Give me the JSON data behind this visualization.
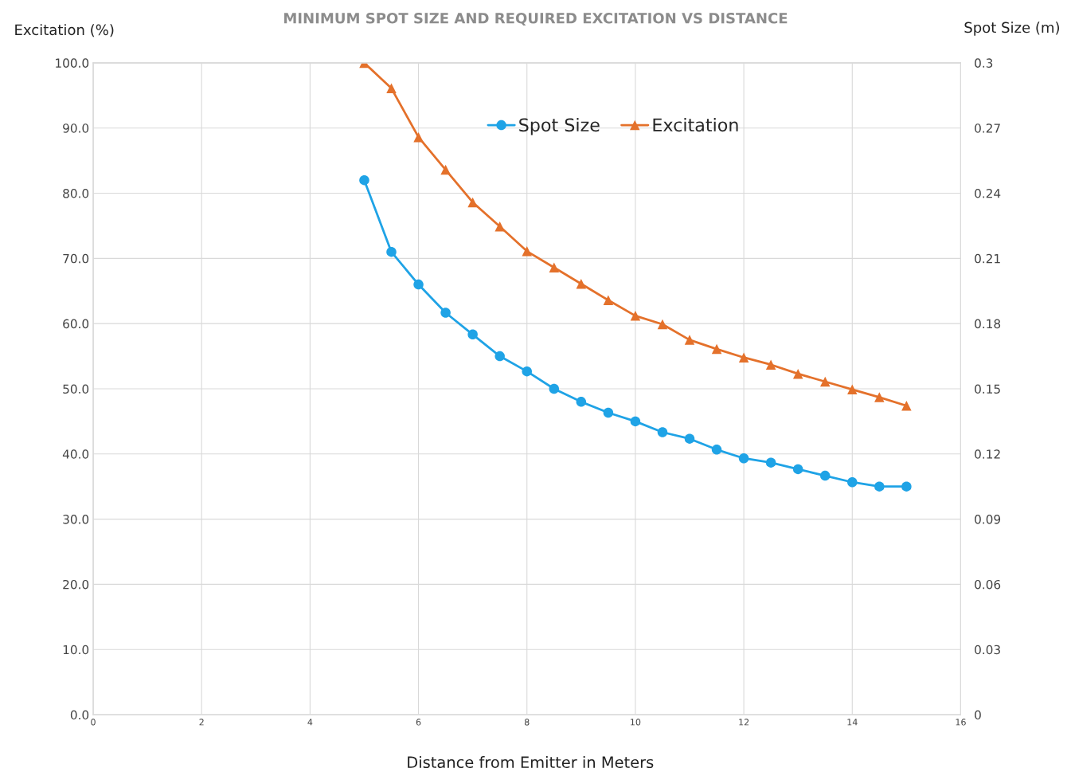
{
  "chart_data": {
    "type": "line",
    "title": "MINIMUM SPOT SIZE AND REQUIRED EXCITATION VS DISTANCE",
    "xlabel": "Distance from Emitter in Meters",
    "ylabel": "Excitation (%)",
    "y2label": "Spot Size (m)",
    "x": [
      5,
      5.5,
      6,
      6.5,
      7,
      7.5,
      8,
      8.5,
      9,
      9.5,
      10,
      10.5,
      11,
      11.5,
      12,
      12.5,
      13,
      13.5,
      14,
      14.5,
      15
    ],
    "series": [
      {
        "name": "Spot Size",
        "color": "#1fa3e6",
        "marker": "circle",
        "axis": "y2",
        "values": [
          0.246,
          0.213,
          0.198,
          0.185,
          0.175,
          0.165,
          0.158,
          0.15,
          0.144,
          0.139,
          0.135,
          0.13,
          0.127,
          0.122,
          0.118,
          0.116,
          0.113,
          0.11,
          0.107,
          0.105,
          0.105
        ]
      },
      {
        "name": "Excitation",
        "color": "#e4712b",
        "marker": "triangle",
        "axis": "y",
        "values": [
          100,
          96.1,
          88.6,
          83.6,
          78.6,
          74.9,
          71.1,
          68.6,
          66.1,
          63.6,
          61.2,
          59.9,
          57.5,
          56.1,
          54.8,
          53.7,
          52.3,
          51.1,
          49.9,
          48.7,
          47.4
        ]
      }
    ],
    "xlim": [
      0,
      16
    ],
    "xticks": [
      0,
      2,
      4,
      6,
      8,
      10,
      12,
      14,
      16
    ],
    "ylim": [
      0,
      100
    ],
    "yticks": [
      {
        "value": 0,
        "label": "0.0"
      },
      {
        "value": 10,
        "label": "10.0"
      },
      {
        "value": 20,
        "label": "20.0"
      },
      {
        "value": 30,
        "label": "30.0"
      },
      {
        "value": 40,
        "label": "40.0"
      },
      {
        "value": 50,
        "label": "50.0"
      },
      {
        "value": 60,
        "label": "60.0"
      },
      {
        "value": 70,
        "label": "70.0"
      },
      {
        "value": 80,
        "label": "80.0"
      },
      {
        "value": 90,
        "label": "90.0"
      },
      {
        "value": 100,
        "label": "100.0"
      }
    ],
    "y2lim": [
      0,
      0.3
    ],
    "y2ticks": [
      0,
      0.03,
      0.06,
      0.09,
      0.12,
      0.15,
      0.18,
      0.21,
      0.24,
      0.27,
      0.3
    ],
    "grid": true,
    "legend": "top",
    "line_style": "solid"
  }
}
